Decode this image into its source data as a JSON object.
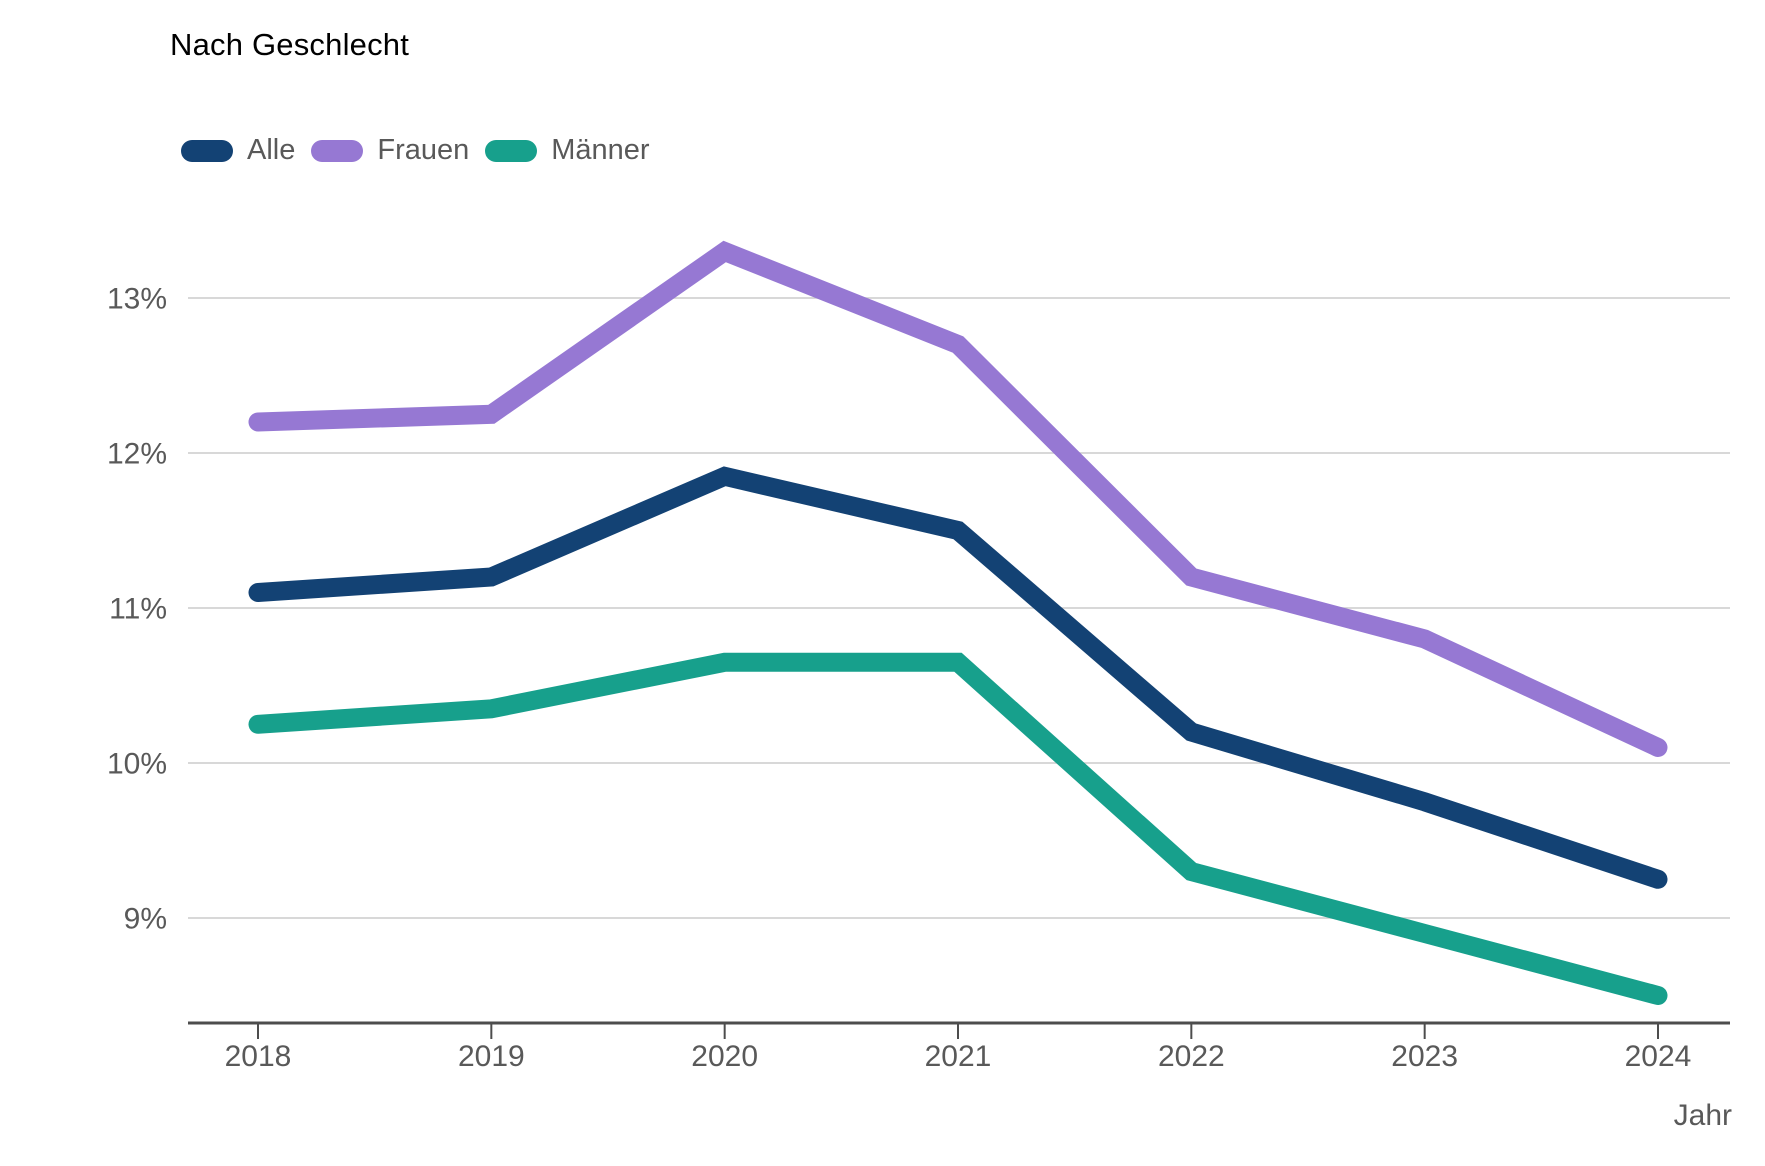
{
  "chart_data": {
    "type": "line",
    "title": "Nach Geschlecht",
    "x_labels": [
      "2018",
      "2019",
      "2020",
      "2021",
      "2022",
      "2023",
      "2024"
    ],
    "xlabel": "Jahr",
    "ylabel": "",
    "y_ticks": {
      "labels": [
        "13%",
        "12%",
        "11%",
        "10%",
        "9%"
      ],
      "values": [
        13,
        12,
        11,
        10,
        9
      ]
    },
    "ylim": [
      8.3,
      13.7
    ],
    "grid": true,
    "legend_position": "top-left",
    "series": [
      {
        "name": "Alle",
        "color": "#134274",
        "values": [
          11.1,
          11.2,
          11.85,
          11.5,
          10.2,
          9.75,
          9.25
        ]
      },
      {
        "name": "Frauen",
        "color": "#9678D3",
        "values": [
          12.2,
          12.25,
          13.3,
          12.7,
          11.2,
          10.8,
          10.1
        ]
      },
      {
        "name": "Männer",
        "color": "#17A08C",
        "values": [
          10.25,
          10.35,
          10.65,
          10.65,
          9.3,
          8.9,
          8.5
        ]
      }
    ],
    "style_colors": {
      "gridline": "#cccccc",
      "axis": "#4d4d4d",
      "tick_text": "#595959"
    }
  }
}
